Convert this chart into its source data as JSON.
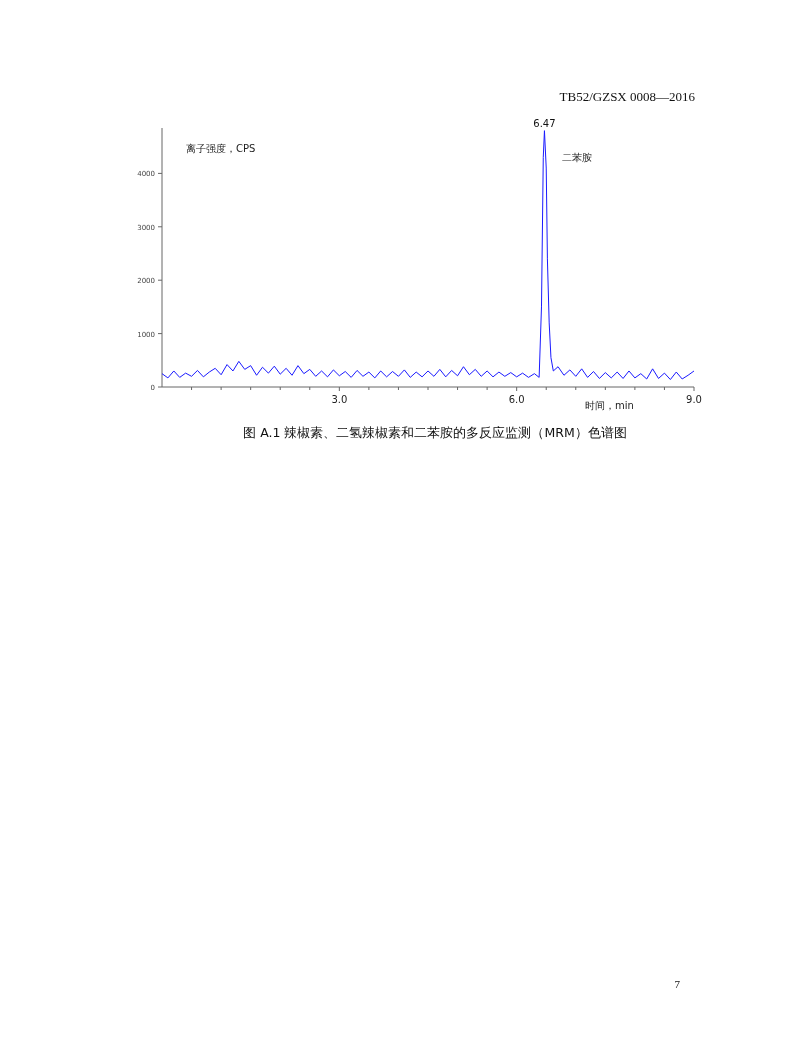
{
  "chart_data": {
    "type": "line",
    "title": "图 A.1 辣椒素、二氢辣椒素和二苯胺的多反应监测（MRM）色谱图",
    "xlabel": "时间，min",
    "ylabel": "离子强度，CPS",
    "annotations": [
      "TB52/GZSX 0008—2016",
      {
        "text": "6.47",
        "x": 6.47,
        "y": 4800
      },
      {
        "text": "二苯胺",
        "x": 6.47,
        "y": 4800
      },
      "7"
    ],
    "x": [
      0,
      0.1,
      0.2,
      0.3,
      0.4,
      0.5,
      0.6,
      0.7,
      0.8,
      0.9,
      1.0,
      1.1,
      1.2,
      1.3,
      1.4,
      1.5,
      1.6,
      1.7,
      1.8,
      1.9,
      2.0,
      2.1,
      2.2,
      2.3,
      2.4,
      2.5,
      2.6,
      2.7,
      2.8,
      2.9,
      3.0,
      3.1,
      3.2,
      3.3,
      3.4,
      3.5,
      3.6,
      3.7,
      3.8,
      3.9,
      4.0,
      4.1,
      4.2,
      4.3,
      4.4,
      4.5,
      4.6,
      4.7,
      4.8,
      4.9,
      5.0,
      5.1,
      5.2,
      5.3,
      5.4,
      5.5,
      5.6,
      5.7,
      5.8,
      5.9,
      6.0,
      6.1,
      6.2,
      6.3,
      6.38,
      6.42,
      6.45,
      6.47,
      6.5,
      6.52,
      6.55,
      6.58,
      6.62,
      6.7,
      6.8,
      6.9,
      7.0,
      7.1,
      7.2,
      7.3,
      7.4,
      7.5,
      7.6,
      7.7,
      7.8,
      7.9,
      8.0,
      8.1,
      8.2,
      8.3,
      8.4,
      8.5,
      8.6,
      8.7,
      8.8,
      8.9,
      9.0
    ],
    "series": [
      {
        "color": "#1a1aff",
        "values": [
          250,
          170,
          300,
          180,
          260,
          200,
          310,
          190,
          280,
          350,
          230,
          420,
          300,
          480,
          330,
          400,
          220,
          370,
          260,
          390,
          240,
          350,
          220,
          400,
          250,
          330,
          200,
          300,
          190,
          320,
          210,
          290,
          180,
          310,
          200,
          280,
          170,
          300,
          190,
          290,
          200,
          320,
          180,
          280,
          190,
          300,
          200,
          330,
          190,
          310,
          210,
          380,
          230,
          330,
          200,
          300,
          190,
          280,
          200,
          270,
          190,
          260,
          180,
          250,
          180,
          1500,
          4300,
          4800,
          4100,
          2400,
          1200,
          550,
          300,
          380,
          220,
          320,
          200,
          340,
          180,
          290,
          160,
          270,
          170,
          280,
          160,
          300,
          170,
          250,
          150,
          340,
          160,
          260,
          140,
          280,
          150,
          220,
          300
        ]
      }
    ],
    "xlim": [
      0,
      9
    ],
    "ylim": [
      0,
      4850
    ],
    "xticks": [
      {
        "value": 0.5,
        "label": null
      },
      {
        "value": 1,
        "label": null
      },
      {
        "value": 1.5,
        "label": null
      },
      {
        "value": 2,
        "label": null
      },
      {
        "value": 2.5,
        "label": null
      },
      {
        "value": 3,
        "label": "3.0"
      },
      {
        "value": 3.5,
        "label": null
      },
      {
        "value": 4,
        "label": null
      },
      {
        "value": 4.5,
        "label": null
      },
      {
        "value": 5,
        "label": null
      },
      {
        "value": 5.5,
        "label": null
      },
      {
        "value": 6,
        "label": "6.0"
      },
      {
        "value": 6.5,
        "label": null
      },
      {
        "value": 7,
        "label": null
      },
      {
        "value": 7.5,
        "label": null
      },
      {
        "value": 8,
        "label": null
      },
      {
        "value": 8.5,
        "label": null
      },
      {
        "value": 9,
        "label": "9.0"
      }
    ],
    "yticks": [
      0,
      1000,
      2000,
      3000,
      4000
    ],
    "grid": false,
    "marker": "none",
    "line_style": "solid"
  }
}
